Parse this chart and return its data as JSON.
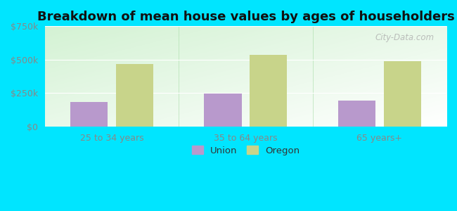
{
  "title": "Breakdown of mean house values by ages of householders",
  "categories": [
    "25 to 34 years",
    "35 to 64 years",
    "65 years+"
  ],
  "union_values": [
    185000,
    245000,
    195000
  ],
  "oregon_values": [
    465000,
    535000,
    490000
  ],
  "ylim": [
    0,
    750000
  ],
  "yticks": [
    0,
    250000,
    500000,
    750000
  ],
  "ytick_labels": [
    "$0",
    "$250k",
    "$500k",
    "$750k"
  ],
  "union_color": "#b899cc",
  "oregon_color": "#c8d48a",
  "figure_bg": "#00e5ff",
  "plot_bg_topleft": "#c8e8c0",
  "plot_bg_bottomright": "#f0fff8",
  "bar_width": 0.28,
  "legend_labels": [
    "Union",
    "Oregon"
  ],
  "watermark": "City-Data.com",
  "title_fontsize": 13,
  "tick_color": "#888888",
  "tick_fontsize": 9
}
